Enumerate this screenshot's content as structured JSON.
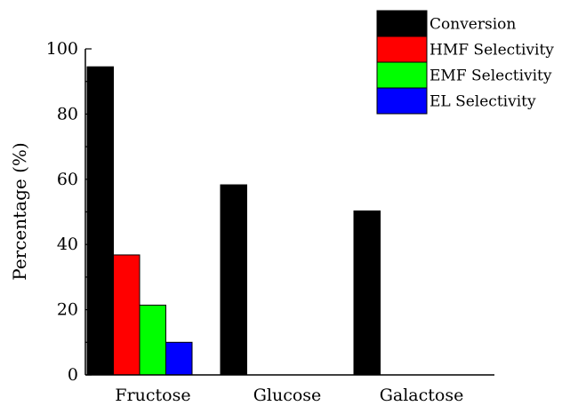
{
  "chart_data": {
    "type": "bar",
    "categories": [
      "Fructose",
      "Glucose",
      "Galactose"
    ],
    "series": [
      {
        "name": "Conversion",
        "color": "#000000",
        "values": [
          94.5,
          58.3,
          50.3
        ]
      },
      {
        "name": "HMF Selectivity",
        "color": "#ff0000",
        "values": [
          36.8,
          null,
          null
        ]
      },
      {
        "name": "EMF Selectivity",
        "color": "#00ff00",
        "values": [
          21.4,
          null,
          null
        ]
      },
      {
        "name": "EL Selectivity",
        "color": "#0000ff",
        "values": [
          10.0,
          null,
          null
        ]
      }
    ],
    "title": "",
    "xlabel": "",
    "ylabel": "Percentage (%)",
    "ylim": [
      0,
      100
    ],
    "yticks": [
      0,
      20,
      40,
      60,
      80,
      100
    ],
    "grid": false,
    "legend_position": "top-right"
  }
}
